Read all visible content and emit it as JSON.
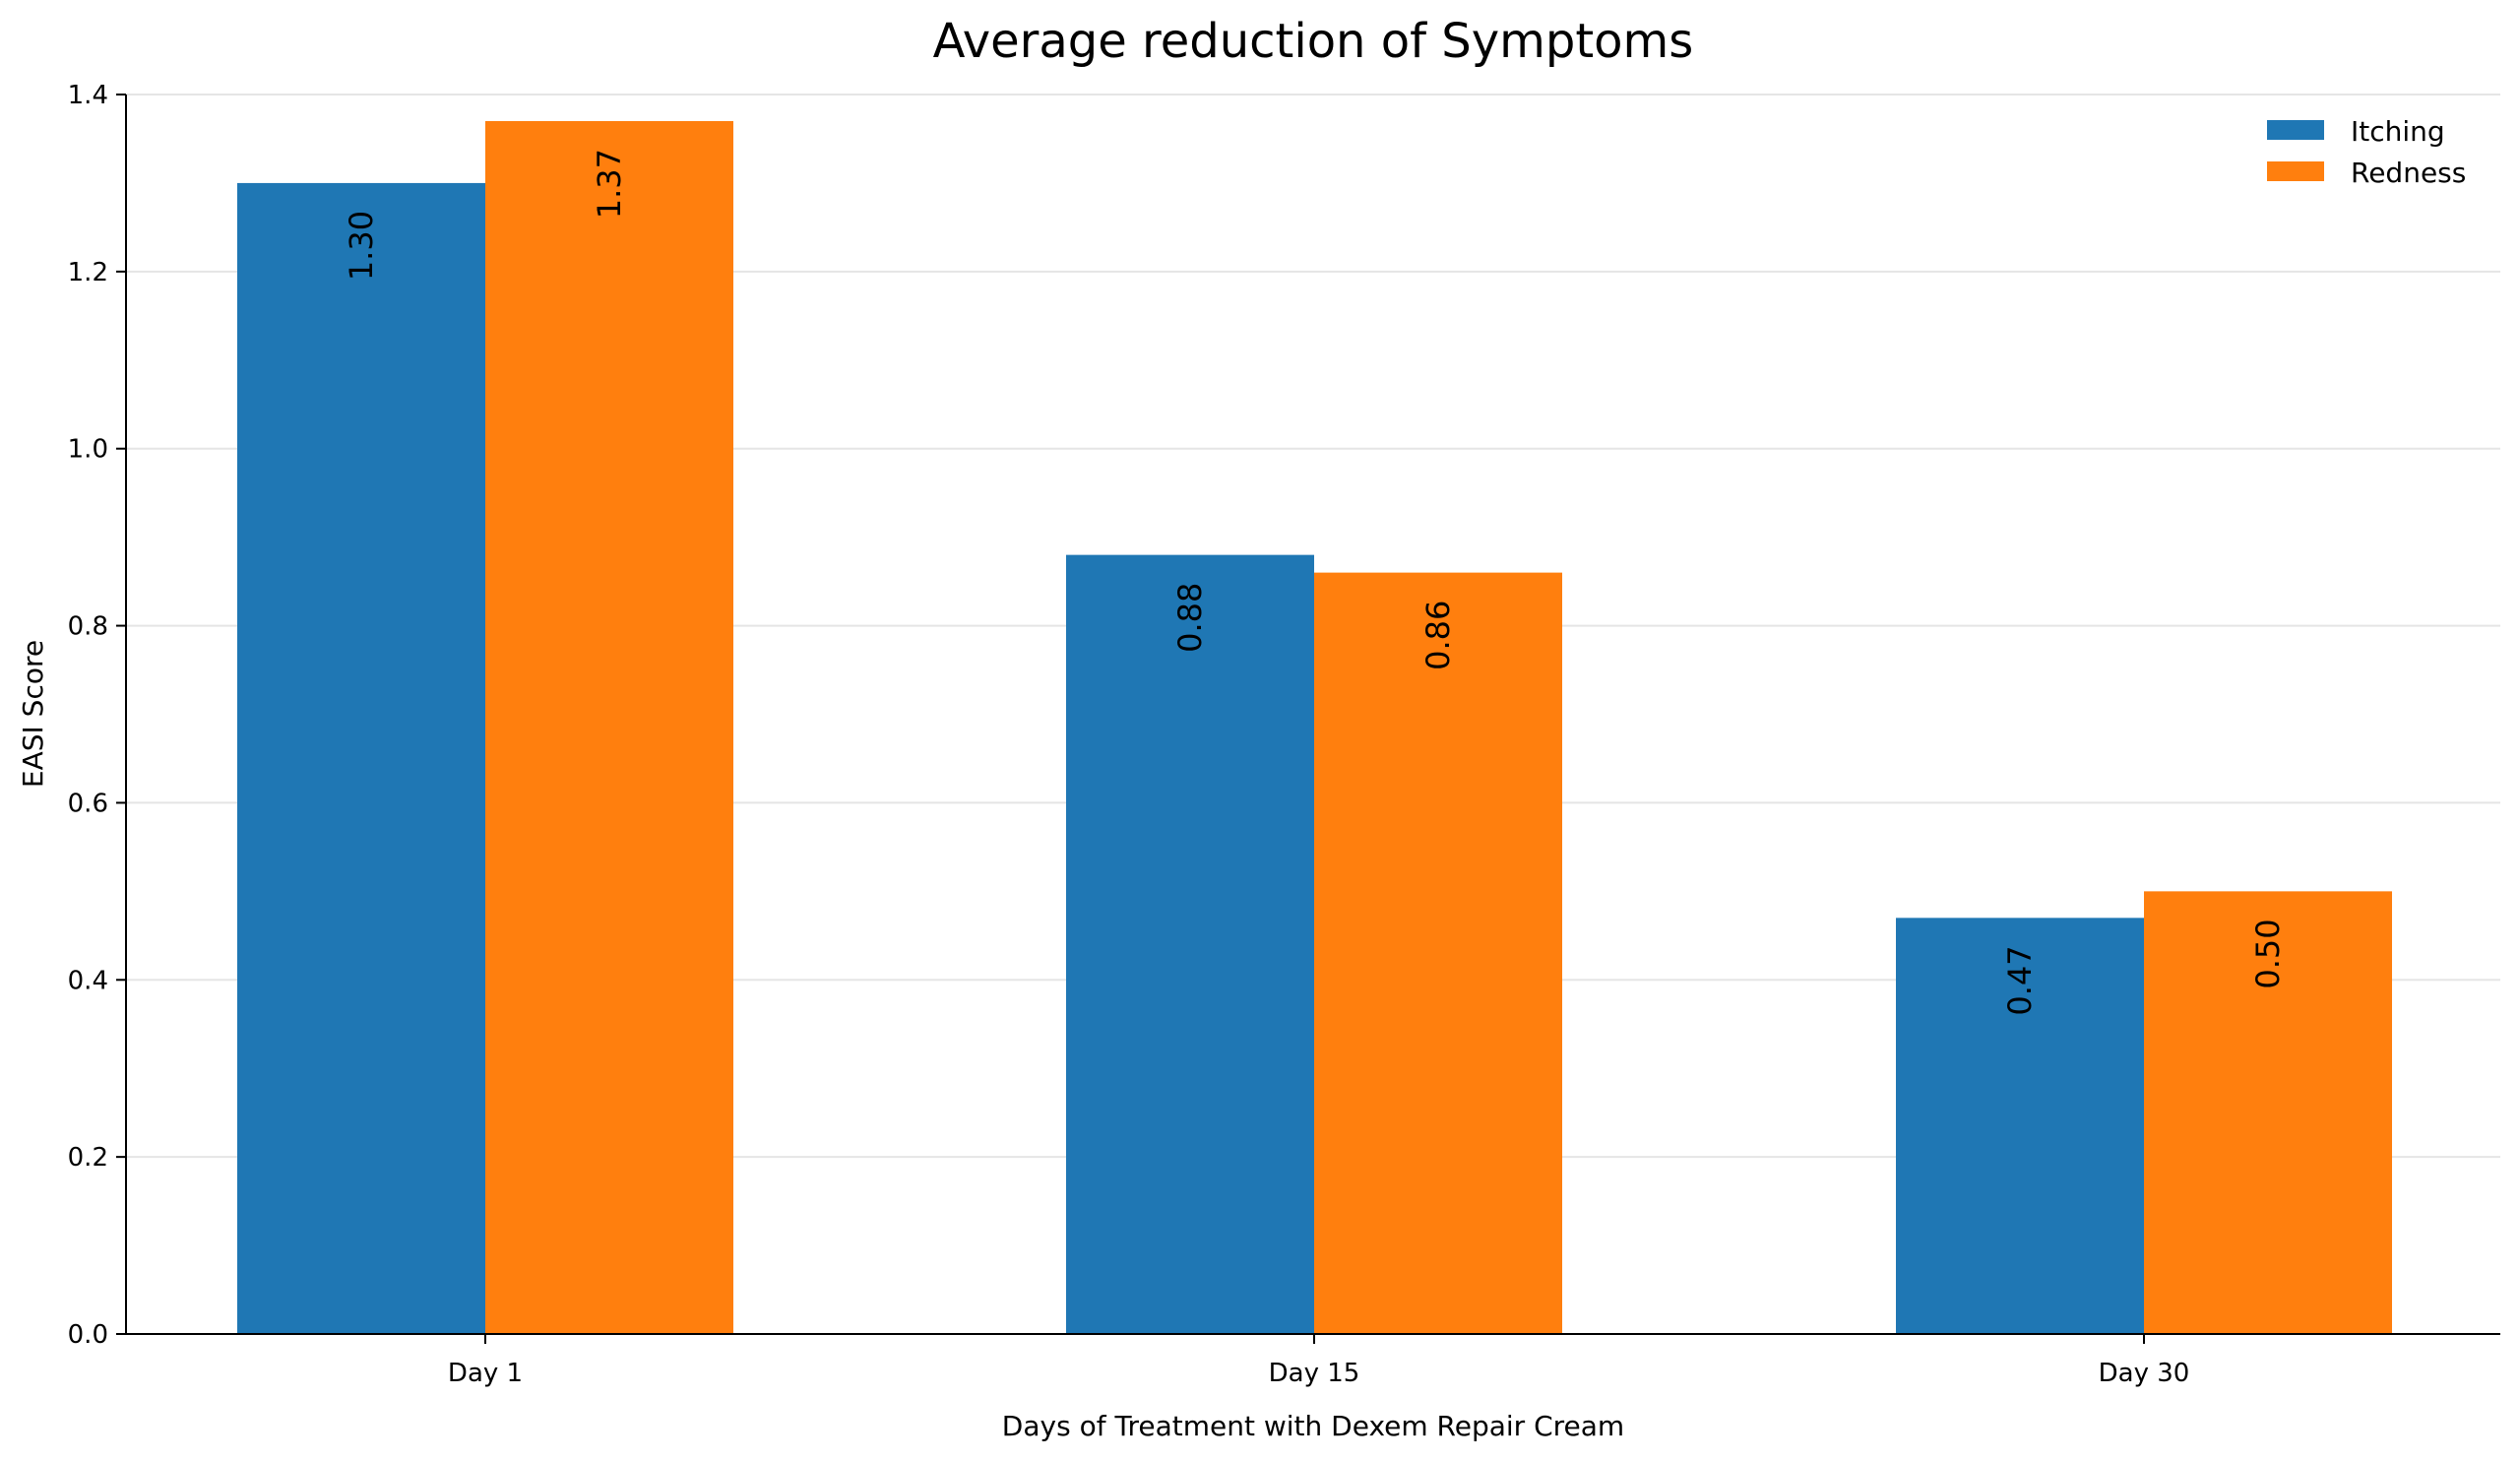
{
  "chart_data": {
    "type": "bar",
    "title": "Average reduction of Symptoms",
    "xlabel": "Days of Treatment with Dexem Repair Cream",
    "ylabel": "EASI Score",
    "categories": [
      "Day 1",
      "Day 15",
      "Day 30"
    ],
    "series": [
      {
        "name": "Itching",
        "values": [
          1.3,
          0.88,
          0.47
        ],
        "labels": [
          "1.30",
          "0.88",
          "0.47"
        ],
        "color": "#1f77b4"
      },
      {
        "name": "Redness",
        "values": [
          1.37,
          0.86,
          0.5
        ],
        "labels": [
          "1.37",
          "0.86",
          "0.50"
        ],
        "color": "#ff7f0e"
      }
    ],
    "ylim": [
      0,
      1.4
    ],
    "yticks": [
      0.0,
      0.2,
      0.4,
      0.6,
      0.8,
      1.0,
      1.2,
      1.4
    ],
    "ytick_labels": [
      "0.0",
      "0.2",
      "0.4",
      "0.6",
      "0.8",
      "1.0",
      "1.2",
      "1.4"
    ],
    "grid": true,
    "grid_axis": "y",
    "legend_position": "top-right",
    "data_label_orientation": "vertical"
  }
}
